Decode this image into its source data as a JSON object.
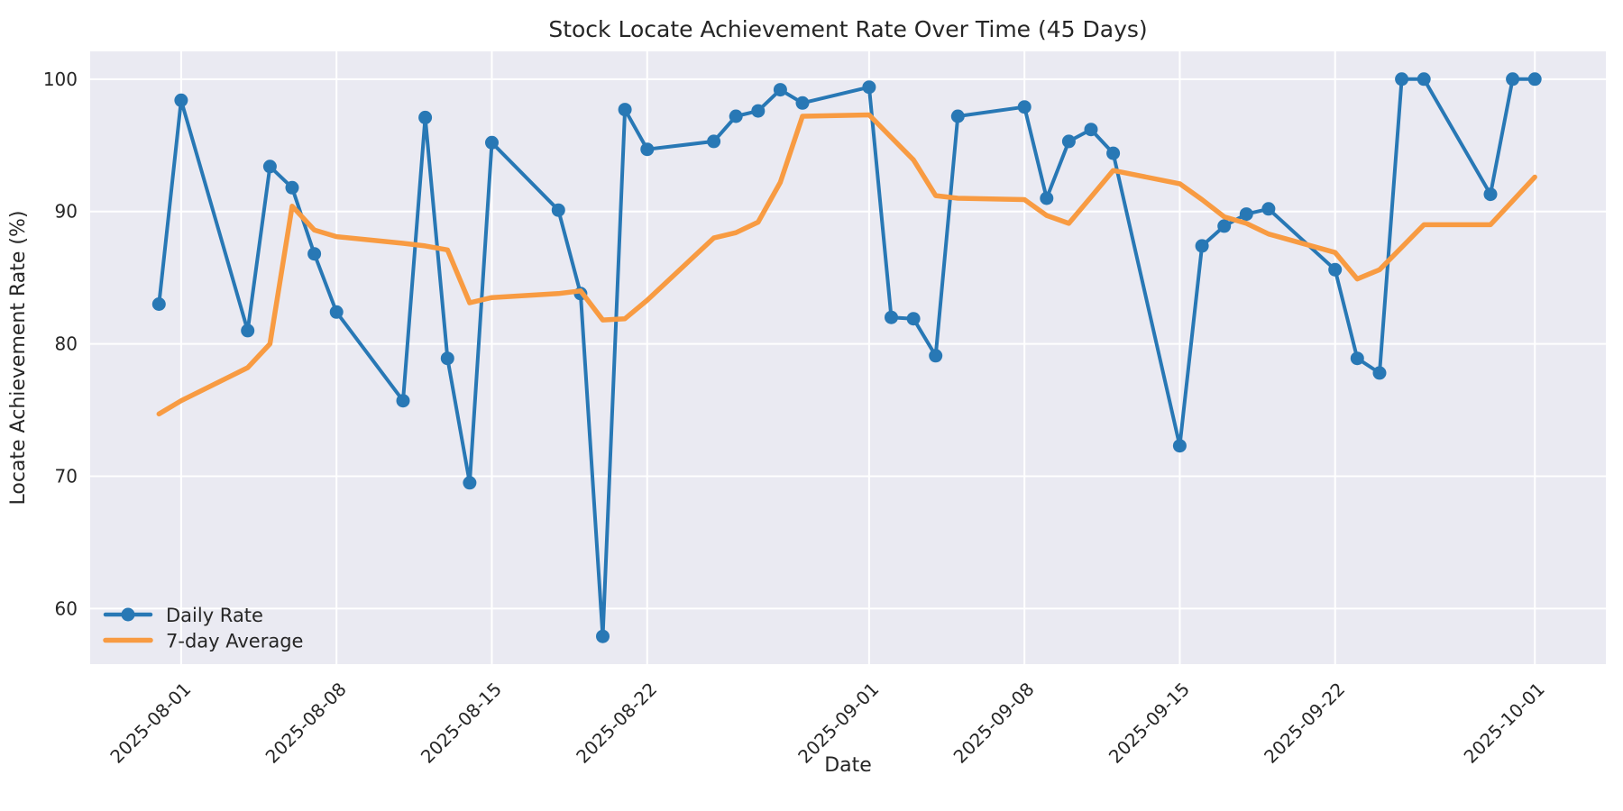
{
  "figure": {
    "title": "Stock Locate Achievement Rate Over Time (45 Days)",
    "xlabel": "Date",
    "ylabel": "Locate Achievement Rate (%)"
  },
  "legend": {
    "items": [
      {
        "label": "Daily Rate",
        "color": "#2878b5",
        "marker": true
      },
      {
        "label": "7-day Average",
        "color": "#f89b42",
        "marker": false
      }
    ]
  },
  "chart_data": {
    "type": "line",
    "title": "Stock Locate Achievement Rate Over Time (45 Days)",
    "xlabel": "Date",
    "ylabel": "Locate Achievement Rate (%)",
    "background_color": "#eaeaf2",
    "grid": true,
    "grid_color": "#ffffff",
    "legend_position": "lower left",
    "ylim": [
      55.8,
      102.1
    ],
    "xlim": [
      "2025-07-28",
      "2025-10-04"
    ],
    "yticks": [
      60,
      70,
      80,
      90,
      100
    ],
    "xticks": [
      "2025-08-01",
      "2025-08-08",
      "2025-08-15",
      "2025-08-22",
      "2025-09-01",
      "2025-09-08",
      "2025-09-15",
      "2025-09-22",
      "2025-10-01"
    ],
    "x": [
      "2025-07-31",
      "2025-08-01",
      "2025-08-04",
      "2025-08-05",
      "2025-08-06",
      "2025-08-07",
      "2025-08-08",
      "2025-08-11",
      "2025-08-12",
      "2025-08-13",
      "2025-08-14",
      "2025-08-15",
      "2025-08-18",
      "2025-08-19",
      "2025-08-20",
      "2025-08-21",
      "2025-08-22",
      "2025-08-25",
      "2025-08-26",
      "2025-08-27",
      "2025-08-28",
      "2025-08-29",
      "2025-09-01",
      "2025-09-02",
      "2025-09-03",
      "2025-09-04",
      "2025-09-05",
      "2025-09-08",
      "2025-09-09",
      "2025-09-10",
      "2025-09-11",
      "2025-09-12",
      "2025-09-15",
      "2025-09-16",
      "2025-09-17",
      "2025-09-18",
      "2025-09-19",
      "2025-09-22",
      "2025-09-23",
      "2025-09-24",
      "2025-09-25",
      "2025-09-26",
      "2025-09-29",
      "2025-09-30",
      "2025-10-01"
    ],
    "series": [
      {
        "name": "Daily Rate",
        "color": "#2878b5",
        "marker": "circle",
        "marker_radius": 7.5,
        "line_width": 4,
        "values": [
          83.0,
          98.4,
          81.0,
          93.4,
          91.8,
          86.8,
          82.4,
          75.7,
          97.1,
          78.9,
          69.5,
          95.2,
          90.1,
          83.8,
          57.9,
          97.7,
          94.7,
          95.3,
          97.2,
          97.6,
          99.2,
          98.2,
          99.4,
          82.0,
          81.9,
          79.1,
          97.2,
          97.9,
          91.0,
          95.3,
          96.2,
          94.4,
          72.3,
          87.4,
          88.9,
          89.8,
          90.2,
          85.6,
          78.9,
          77.8,
          100.0,
          100.0,
          91.3,
          100.0,
          100.0
        ]
      },
      {
        "name": "7-day Average",
        "color": "#f89b42",
        "marker": "none",
        "marker_radius": 0,
        "line_width": 5.5,
        "values": [
          74.7,
          75.7,
          78.2,
          80.0,
          90.4,
          88.6,
          88.1,
          87.6,
          87.4,
          87.1,
          83.1,
          83.5,
          83.8,
          84.0,
          81.8,
          81.9,
          83.3,
          88.0,
          88.4,
          89.2,
          92.2,
          97.2,
          97.3,
          95.6,
          93.9,
          91.2,
          91.0,
          90.9,
          89.7,
          89.1,
          91.1,
          93.1,
          92.1,
          90.9,
          89.6,
          89.1,
          88.3,
          86.9,
          84.9,
          85.6,
          87.3,
          89.0,
          89.0,
          90.8,
          92.6
        ]
      }
    ]
  }
}
